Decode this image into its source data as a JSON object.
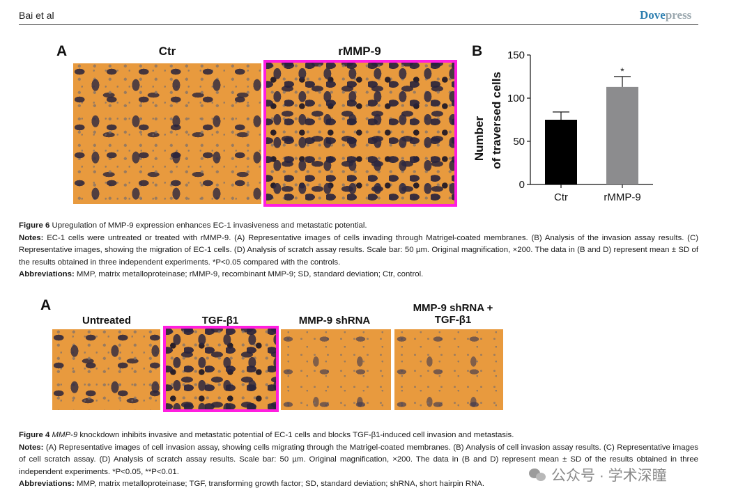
{
  "header": {
    "running_head": "Bai et al",
    "brand_main": "Dove",
    "brand_suffix": "press"
  },
  "figure6": {
    "panel_a_letter": "A",
    "panel_b_letter": "B",
    "images": [
      {
        "label": "Ctr",
        "highlighted": false
      },
      {
        "label": "rMMP-9",
        "highlighted": true
      }
    ],
    "highlight_color": "#ff1ee0",
    "caption": {
      "title_lead": "Figure 6",
      "title_text": " Upregulation of MMP-9 expression enhances EC-1 invasiveness and metastatic potential.",
      "notes_lead": "Notes:",
      "notes_text": " EC-1 cells were untreated or treated with rMMP-9. (A) Representative images of cells invading through Matrigel-coated membranes. (B) Analysis of the invasion assay results. (C) Representative images, showing the migration of EC-1 cells. (D) Analysis of scratch assay results. Scale bar: 50 µm. Original magnification, ×200. The data in (B and D) represent mean ± SD of the results obtained in three independent experiments. *P<0.05 compared with the controls.",
      "abbrev_lead": "Abbreviations:",
      "abbrev_text": " MMP, matrix metalloproteinase; rMMP-9, recombinant MMP-9; SD, standard deviation; Ctr, control."
    }
  },
  "chart_data": {
    "type": "bar",
    "categories": [
      "Ctr",
      "rMMP-9"
    ],
    "values": [
      75,
      113
    ],
    "errors": [
      9,
      12
    ],
    "significance": [
      "",
      "*"
    ],
    "bar_colors": [
      "#000000",
      "#8c8c8e"
    ],
    "ylabel_line1": "Number",
    "ylabel_line2": "of traversed cells",
    "xlabel": "",
    "ylim": [
      0,
      150
    ],
    "yticks": [
      0,
      50,
      100,
      150
    ],
    "grid": false
  },
  "figure4": {
    "panel_a_letter": "A",
    "images": [
      {
        "label": "Untreated",
        "highlighted": false
      },
      {
        "label": "TGF-β1",
        "highlighted": true
      },
      {
        "label": "MMP-9 shRNA",
        "highlighted": false
      },
      {
        "label_line1": "MMP-9 shRNA +",
        "label_line2": "TGF-β1",
        "highlighted": false
      }
    ],
    "caption": {
      "title_lead": "Figure 4",
      "title_italic": " MMP-9",
      "title_text": " knockdown inhibits invasive and metastatic potential of EC-1 cells and blocks TGF-β1-induced cell invasion and metastasis.",
      "notes_lead": "Notes:",
      "notes_text": " (A) Representative images of cell invasion assay, showing cells migrating through the Matrigel-coated membranes. (B) Analysis of cell invasion assay results. (C) Representative images of cell scratch assay. (D) Analysis of scratch assay results. Scale bar: 50 µm. Original magnification, ×200. The data in (B and D) represent mean ± SD of the results obtained in three independent experiments. *P<0.05, **P<0.01.",
      "abbrev_lead": "Abbreviations:",
      "abbrev_text": " MMP, matrix metalloproteinase; TGF, transforming growth factor; SD, standard deviation; shRNA, short hairpin RNA."
    }
  },
  "watermark": {
    "text": "公众号 · 学术深瞳"
  },
  "colors": {
    "micrograph_bg": "#e89a3e",
    "brand": "#2d7fb0"
  }
}
